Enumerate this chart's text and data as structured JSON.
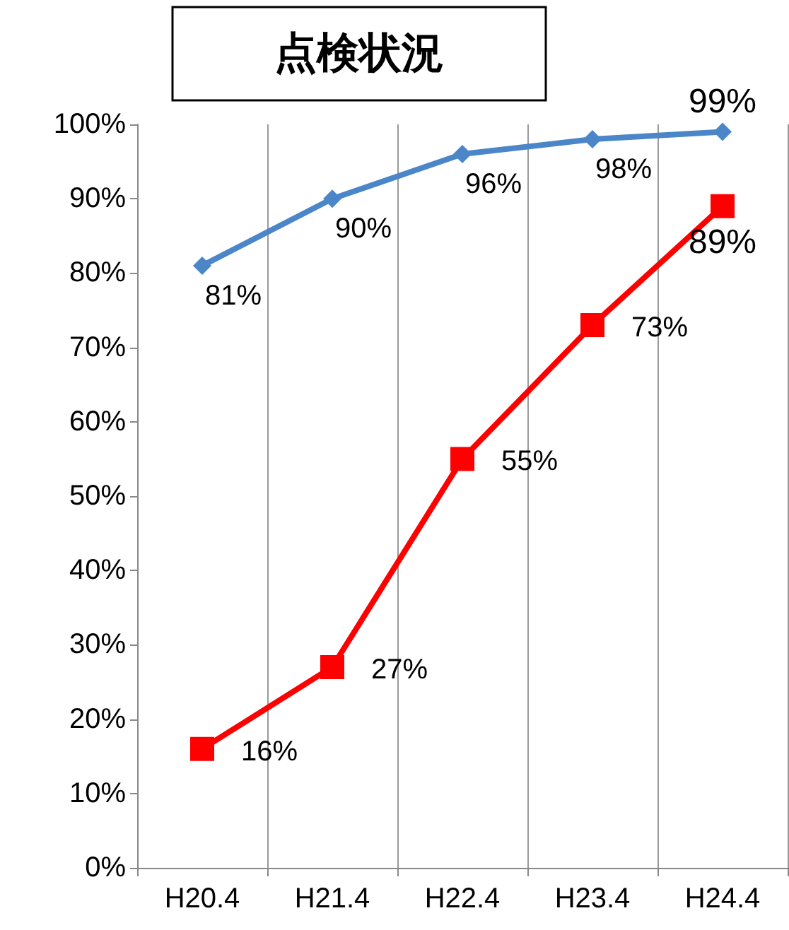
{
  "chart_data": {
    "type": "line",
    "title": "点検状況",
    "categories": [
      "H20.4",
      "H21.4",
      "H22.4",
      "H23.4",
      "H24.4"
    ],
    "series": [
      {
        "color": "#4a86c8",
        "marker": "diamond",
        "values": [
          81,
          90,
          96,
          98,
          99
        ],
        "value_labels": [
          "81%",
          "90%",
          "96%",
          "98%",
          "99%"
        ]
      },
      {
        "color": "#ff0000",
        "marker": "square",
        "values": [
          16,
          27,
          55,
          73,
          89
        ],
        "value_labels": [
          "16%",
          "27%",
          "55%",
          "73%",
          "89%"
        ]
      }
    ],
    "ylim": [
      0,
      100
    ],
    "yticks": [
      {
        "value": 0,
        "label": "0%"
      },
      {
        "value": 10,
        "label": "10%"
      },
      {
        "value": 20,
        "label": "20%"
      },
      {
        "value": 30,
        "label": "30%"
      },
      {
        "value": 40,
        "label": "40%"
      },
      {
        "value": 50,
        "label": "50%"
      },
      {
        "value": 60,
        "label": "60%"
      },
      {
        "value": 70,
        "label": "70%"
      },
      {
        "value": 80,
        "label": "80%"
      },
      {
        "value": 90,
        "label": "90%"
      },
      {
        "value": 100,
        "label": "100%"
      }
    ],
    "grid": "x",
    "line_style": "solid"
  }
}
